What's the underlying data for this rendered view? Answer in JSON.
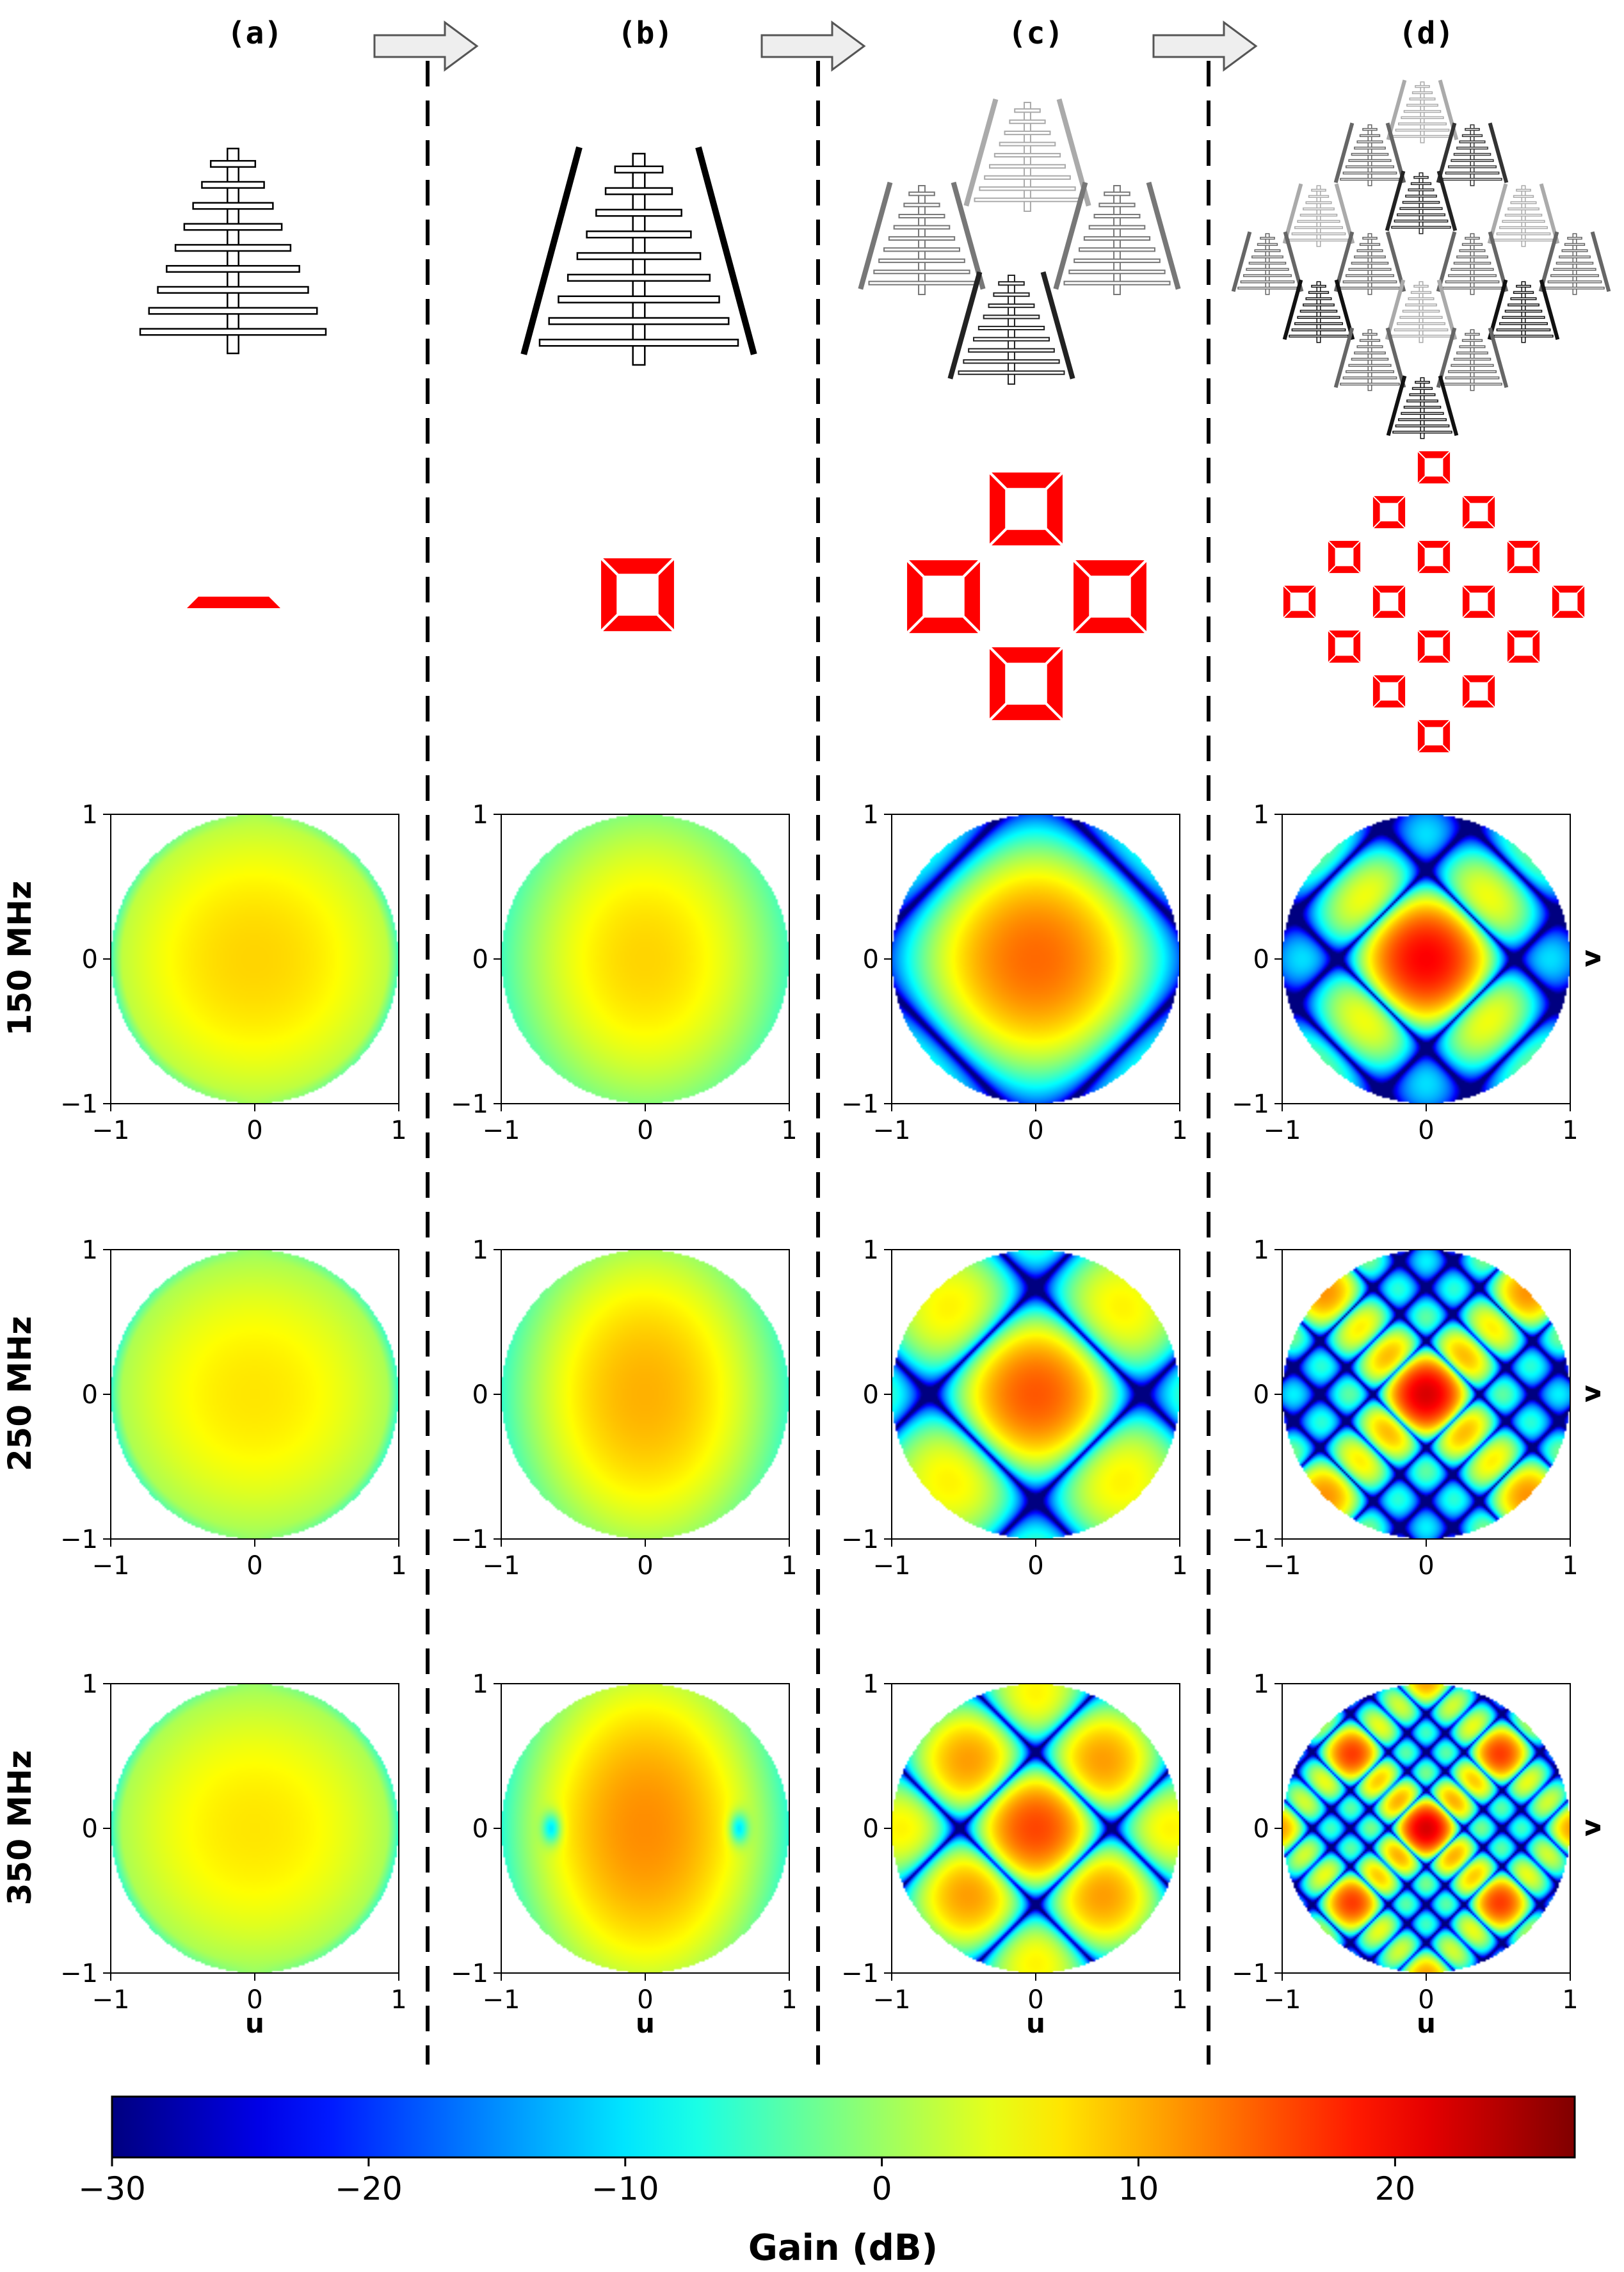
{
  "chart_data": {
    "type": "heatmap",
    "description_layout": "4 columns x 3 rows of beam-pattern maps in direction-cosine coordinates (u, v), each within the unit circle, color = gain in dB",
    "columns": [
      {
        "label": "(a)",
        "antenna_icon": "single-log-periodic-antenna-icon",
        "layout_icon": "single-element-layout-icon"
      },
      {
        "label": "(b)",
        "antenna_icon": "four-antenna-square-tile-icon",
        "layout_icon": "square-tile-layout-icon"
      },
      {
        "label": "(c)",
        "antenna_icon": "four-tile-station-icon",
        "layout_icon": "four-tile-layout-icon"
      },
      {
        "label": "(d)",
        "antenna_icon": "sixteen-tile-station-icon",
        "layout_icon": "sixteen-tile-layout-icon"
      }
    ],
    "arrows": [
      "arrow-right-icon",
      "arrow-right-icon",
      "arrow-right-icon"
    ],
    "rows": [
      {
        "label": "150 MHz",
        "frequency_mhz": 150
      },
      {
        "label": "250 MHz",
        "frequency_mhz": 250
      },
      {
        "label": "350 MHz",
        "frequency_mhz": 350
      }
    ],
    "xlabel": "u",
    "ylabel": "v",
    "xlim": [
      -1,
      1
    ],
    "ylim": [
      -1,
      1
    ],
    "xticks": [
      "−1",
      "0",
      "1"
    ],
    "yticks": [
      "1",
      "0",
      "−1"
    ],
    "colorbar": {
      "label": "Gain (dB)",
      "range": [
        -30,
        27
      ],
      "ticks": [
        "−30",
        "−20",
        "−10",
        "0",
        "10",
        "20"
      ],
      "tick_values": [
        -30,
        -20,
        -10,
        0,
        10,
        20
      ],
      "colormap": "jet"
    },
    "peak_gain_db": {
      "a": [
        8,
        7,
        7
      ],
      "b": [
        8,
        10,
        12
      ],
      "c": [
        14,
        15,
        16
      ],
      "d": [
        20,
        22,
        22
      ]
    },
    "colors": {
      "tile_layout": "#ff0000",
      "divider": "#000000"
    }
  }
}
